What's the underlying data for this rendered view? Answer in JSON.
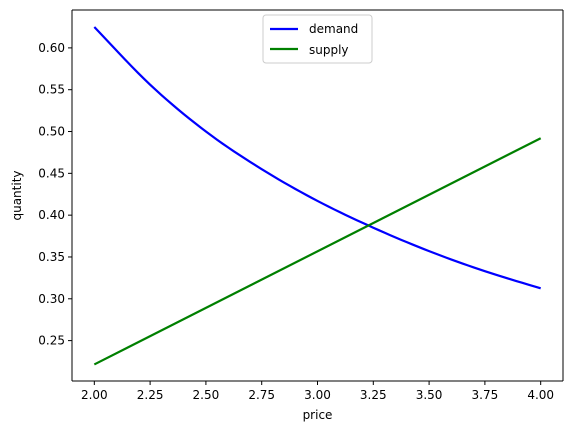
{
  "chart_data": {
    "type": "line",
    "xlabel": "price",
    "ylabel": "quantity",
    "xlim": [
      1.9,
      4.1
    ],
    "ylim": [
      0.2017,
      0.6453
    ],
    "xticks": [
      "2.00",
      "2.25",
      "2.50",
      "2.75",
      "3.00",
      "3.25",
      "3.50",
      "3.75",
      "4.00"
    ],
    "yticks": [
      "0.25",
      "0.30",
      "0.35",
      "0.40",
      "0.45",
      "0.50",
      "0.55",
      "0.60"
    ],
    "grid": false,
    "legend_position": "top-center",
    "series": [
      {
        "name": "demand",
        "color": "#0000ff",
        "x": [
          2.0,
          2.25,
          2.5,
          2.75,
          3.0,
          3.25,
          3.5,
          3.75,
          4.0
        ],
        "y": [
          0.625,
          0.556,
          0.5,
          0.455,
          0.417,
          0.385,
          0.357,
          0.333,
          0.3125
        ]
      },
      {
        "name": "supply",
        "color": "#008000",
        "x": [
          2.0,
          4.0
        ],
        "y": [
          0.2215,
          0.492
        ]
      }
    ]
  }
}
